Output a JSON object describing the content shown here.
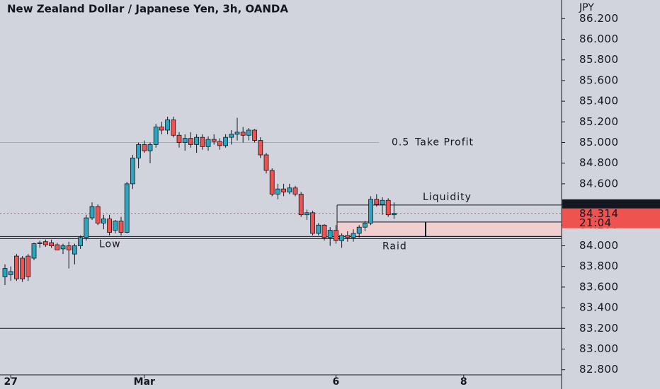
{
  "chart_data": {
    "type": "candlestick",
    "title": "New Zealand Dollar / Japanese Yen, 3h, OANDA",
    "y_label": "JPY",
    "categories": [
      null,
      "27",
      null,
      null,
      null,
      null,
      null,
      null,
      null,
      null,
      null,
      null,
      null,
      null,
      null,
      null,
      null,
      null,
      null,
      null,
      null,
      null,
      null,
      null,
      "Mar",
      null,
      null,
      null,
      null,
      null,
      null,
      null,
      null,
      null,
      null,
      null,
      null,
      null,
      null,
      null,
      null,
      null,
      null,
      null,
      null,
      null,
      null,
      null,
      null,
      null,
      null,
      null,
      null,
      null,
      null,
      null,
      null,
      "6",
      null,
      null,
      null,
      null,
      null,
      null,
      null,
      null,
      null,
      null,
      null,
      null,
      null,
      null,
      null,
      null,
      null,
      null,
      null,
      null,
      null,
      "8",
      null,
      null,
      null,
      null,
      null,
      null,
      null,
      null,
      null,
      null,
      null,
      null,
      null,
      null,
      null,
      null
    ],
    "open": [
      83.7,
      83.72,
      83.9,
      83.88,
      83.9,
      83.88,
      84.02,
      84.04,
      84.03,
      84.01,
      83.97,
      84.0,
      83.92,
      84.0,
      84.08,
      84.27,
      84.38,
      84.22,
      84.26,
      84.15,
      84.24,
      84.13,
      84.6,
      84.85,
      84.98,
      84.92,
      84.98,
      85.15,
      85.12,
      85.22,
      85.07,
      85.0,
      85.04,
      84.98,
      85.05,
      84.96,
      85.03,
      85.01,
      84.97,
      85.05,
      85.08,
      85.1,
      85.07,
      85.12,
      85.02,
      84.88,
      84.73,
      84.5,
      84.55,
      84.52,
      84.56,
      84.5,
      84.3,
      84.32,
      84.12,
      84.2,
      84.08,
      84.15,
      84.05,
      84.1,
      84.08,
      84.12,
      84.18,
      84.22,
      84.45,
      84.4,
      84.44,
      84.3,
      null,
      null,
      null,
      null,
      null,
      null,
      null,
      null,
      null,
      null,
      null,
      null,
      null,
      null,
      null,
      null,
      null,
      null,
      null,
      null,
      null,
      null,
      null,
      null,
      null,
      null,
      null,
      null
    ],
    "high": [
      83.82,
      83.8,
      83.92,
      83.9,
      83.92,
      84.03,
      84.05,
      84.06,
      84.06,
      84.03,
      84.02,
      84.04,
      84.02,
      84.1,
      84.3,
      84.42,
      84.4,
      84.3,
      84.3,
      84.25,
      84.28,
      84.62,
      84.88,
      85.0,
      85.02,
      85.0,
      85.18,
      85.2,
      85.25,
      85.25,
      85.1,
      85.08,
      85.1,
      85.08,
      85.08,
      85.06,
      85.08,
      85.04,
      85.08,
      85.12,
      85.24,
      85.15,
      85.14,
      85.13,
      85.05,
      84.9,
      84.75,
      84.6,
      84.6,
      84.6,
      84.58,
      84.52,
      84.35,
      84.34,
      84.22,
      84.21,
      84.18,
      84.2,
      84.12,
      84.14,
      84.16,
      84.2,
      84.24,
      84.48,
      84.5,
      84.47,
      84.46,
      84.42,
      null,
      null,
      null,
      null,
      null,
      null,
      null,
      null,
      null,
      null,
      null,
      null,
      null,
      null,
      null,
      null,
      null,
      null,
      null,
      null,
      null,
      null,
      null,
      null,
      null,
      null,
      null,
      null
    ],
    "low": [
      83.62,
      83.66,
      83.66,
      83.65,
      83.66,
      83.86,
      83.98,
      83.99,
      83.98,
      83.96,
      83.92,
      83.78,
      83.82,
      83.97,
      84.05,
      84.25,
      84.2,
      84.16,
      84.1,
      84.12,
      84.1,
      84.12,
      84.55,
      84.75,
      84.9,
      84.8,
      84.95,
      85.08,
      85.08,
      85.05,
      84.95,
      84.92,
      84.95,
      84.9,
      84.93,
      84.92,
      84.98,
      84.93,
      84.95,
      84.98,
      85.02,
      85.0,
      85.02,
      85.0,
      84.85,
      84.7,
      84.48,
      84.45,
      84.48,
      84.5,
      84.48,
      84.28,
      84.25,
      84.1,
      84.1,
      84.05,
      84.0,
      84.02,
      83.98,
      84.04,
      84.04,
      84.08,
      84.14,
      84.2,
      84.38,
      84.3,
      84.28,
      84.26,
      null,
      null,
      null,
      null,
      null,
      null,
      null,
      null,
      null,
      null,
      null,
      null,
      null,
      null,
      null,
      null,
      null,
      null,
      null,
      null,
      null,
      null,
      null,
      null,
      null,
      null,
      null,
      null
    ],
    "close": [
      83.78,
      83.75,
      83.68,
      83.68,
      83.7,
      84.02,
      84.03,
      84.01,
      84.0,
      83.96,
      84.0,
      83.96,
      84.0,
      84.08,
      84.27,
      84.38,
      84.22,
      84.26,
      84.13,
      84.24,
      84.13,
      84.6,
      84.85,
      84.98,
      84.92,
      84.98,
      85.15,
      85.12,
      85.22,
      85.07,
      85.0,
      85.04,
      84.98,
      85.05,
      84.96,
      85.03,
      85.01,
      84.97,
      85.05,
      85.08,
      85.1,
      85.07,
      85.12,
      85.02,
      84.88,
      84.73,
      84.5,
      84.55,
      84.52,
      84.56,
      84.5,
      84.3,
      84.32,
      84.12,
      84.2,
      84.08,
      84.15,
      84.05,
      84.1,
      84.08,
      84.12,
      84.18,
      84.22,
      84.45,
      84.4,
      84.44,
      84.3,
      84.314,
      null,
      null,
      null,
      null,
      null,
      null,
      null,
      null,
      null,
      null,
      null,
      null,
      null,
      null,
      null,
      null,
      null,
      null,
      null,
      null,
      null,
      null,
      null,
      null,
      null,
      null,
      null,
      null
    ],
    "up_color": "#2aa7be",
    "down_color": "#ef5350",
    "ylim": [
      82.75,
      86.38
    ],
    "yticks": [
      {
        "value": 82.8,
        "label": "82.800"
      },
      {
        "value": 83.0,
        "label": "83.000"
      },
      {
        "value": 83.2,
        "label": "83.200"
      },
      {
        "value": 83.4,
        "label": "83.400"
      },
      {
        "value": 83.6,
        "label": "83.600"
      },
      {
        "value": 83.8,
        "label": "83.800"
      },
      {
        "value": 84.0,
        "label": "84.000"
      },
      {
        "value": 84.2,
        "label": "84.200"
      },
      {
        "value": 84.4,
        "label": "84.400"
      },
      {
        "value": 84.6,
        "label": "84.600"
      },
      {
        "value": 84.8,
        "label": "84.800"
      },
      {
        "value": 85.0,
        "label": "85.000"
      },
      {
        "value": 85.2,
        "label": "85.200"
      },
      {
        "value": 85.4,
        "label": "85.400"
      },
      {
        "value": 85.6,
        "label": "85.600"
      },
      {
        "value": 85.8,
        "label": "85.800"
      },
      {
        "value": 86.0,
        "label": "86.000"
      },
      {
        "value": 86.2,
        "label": "86.200"
      }
    ],
    "take_profit": 85.0,
    "liquidity": 84.395,
    "low_level": 84.09,
    "support_line": 83.2,
    "zone": [
      84.09,
      84.23
    ],
    "zone_color": "#f0cfd1",
    "last_price": 84.314,
    "countdown": "21:04",
    "annotations": [
      "Take Profit",
      "0.5",
      "Liquidity",
      "Low",
      "Raid"
    ]
  }
}
